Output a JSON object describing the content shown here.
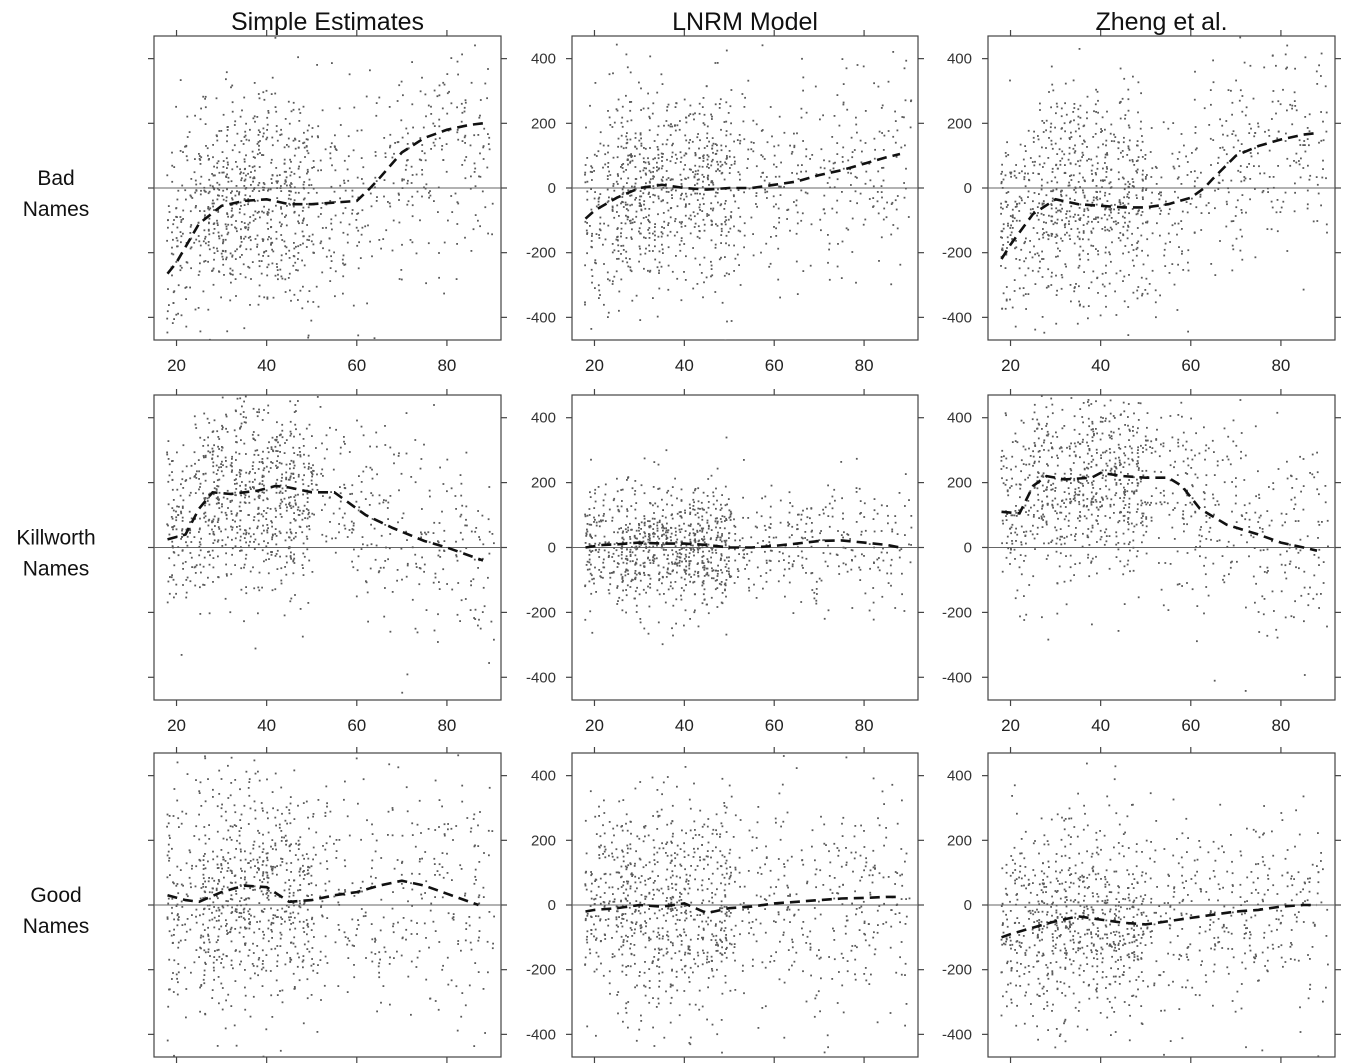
{
  "chart_data": {
    "type": "scatter",
    "layout": "3x3 grid of panels",
    "column_titles": [
      "Simple Estimates",
      "LNRM Model",
      "Zheng et al."
    ],
    "row_labels": [
      [
        "Bad",
        "Names"
      ],
      [
        "Killworth",
        "Names"
      ],
      [
        "Good",
        "Names"
      ]
    ],
    "x_ticks": [
      20,
      40,
      60,
      80
    ],
    "x_range": [
      15,
      92
    ],
    "y_ticks": [
      400,
      200,
      0,
      -200,
      -400
    ],
    "y_range": [
      -470,
      470
    ],
    "reference_line_y": 0,
    "panels": [
      {
        "row": 0,
        "col": 0,
        "trend": {
          "x": [
            18,
            20,
            25,
            30,
            35,
            40,
            45,
            50,
            55,
            60,
            63,
            65,
            70,
            75,
            80,
            85,
            88
          ],
          "y": [
            -265,
            -230,
            -110,
            -55,
            -40,
            -35,
            -50,
            -50,
            -45,
            -40,
            0,
            30,
            110,
            155,
            180,
            195,
            200
          ]
        },
        "scatter": {
          "center": [
            -20,
            -20,
            0,
            40
          ],
          "spread": 170
        }
      },
      {
        "row": 0,
        "col": 1,
        "trend": {
          "x": [
            18,
            20,
            25,
            30,
            35,
            40,
            45,
            50,
            55,
            60,
            65,
            70,
            75,
            80,
            85,
            88
          ],
          "y": [
            -95,
            -70,
            -30,
            0,
            10,
            0,
            -5,
            0,
            0,
            10,
            20,
            40,
            55,
            75,
            95,
            105
          ]
        },
        "scatter": {
          "center": [
            0,
            10,
            20,
            40
          ],
          "spread": 160
        }
      },
      {
        "row": 0,
        "col": 2,
        "trend": {
          "x": [
            18,
            20,
            25,
            30,
            35,
            40,
            45,
            50,
            55,
            60,
            63,
            65,
            70,
            75,
            80,
            85,
            88
          ],
          "y": [
            -220,
            -175,
            -80,
            -35,
            -50,
            -55,
            -60,
            -60,
            -50,
            -30,
            0,
            30,
            100,
            130,
            150,
            165,
            170
          ]
        },
        "scatter": {
          "center": [
            -20,
            -20,
            0,
            60
          ],
          "spread": 170
        }
      },
      {
        "row": 1,
        "col": 0,
        "trend": {
          "x": [
            18,
            22,
            25,
            28,
            32,
            38,
            42,
            45,
            50,
            55,
            58,
            62,
            68,
            75,
            80,
            85,
            88
          ],
          "y": [
            25,
            40,
            120,
            170,
            165,
            175,
            190,
            185,
            170,
            170,
            140,
            100,
            60,
            20,
            0,
            -25,
            -40
          ]
        },
        "scatter": {
          "center": [
            150,
            170,
            110,
            20
          ],
          "spread": 150
        }
      },
      {
        "row": 1,
        "col": 1,
        "trend": {
          "x": [
            18,
            22,
            25,
            30,
            35,
            40,
            45,
            50,
            55,
            60,
            65,
            70,
            75,
            80,
            85,
            88
          ],
          "y": [
            0,
            8,
            10,
            15,
            12,
            12,
            8,
            0,
            0,
            5,
            12,
            20,
            22,
            15,
            8,
            0
          ]
        },
        "scatter": {
          "center": [
            10,
            20,
            10,
            20
          ],
          "spread": 95
        }
      },
      {
        "row": 1,
        "col": 2,
        "trend": {
          "x": [
            18,
            22,
            25,
            28,
            32,
            38,
            40,
            45,
            50,
            55,
            58,
            62,
            68,
            75,
            80,
            85,
            88
          ],
          "y": [
            110,
            105,
            190,
            220,
            210,
            215,
            230,
            220,
            215,
            215,
            190,
            120,
            70,
            40,
            15,
            0,
            -10
          ]
        },
        "scatter": {
          "center": [
            180,
            230,
            170,
            30
          ],
          "spread": 150
        }
      },
      {
        "row": 2,
        "col": 0,
        "trend": {
          "x": [
            18,
            22,
            25,
            30,
            35,
            40,
            45,
            50,
            55,
            60,
            65,
            70,
            75,
            80,
            85,
            87
          ],
          "y": [
            30,
            15,
            10,
            40,
            60,
            55,
            10,
            15,
            30,
            40,
            60,
            75,
            60,
            35,
            10,
            0
          ]
        },
        "scatter": {
          "center": [
            50,
            60,
            40,
            30
          ],
          "spread": 190
        }
      },
      {
        "row": 2,
        "col": 1,
        "trend": {
          "x": [
            18,
            20,
            25,
            30,
            35,
            40,
            45,
            50,
            55,
            60,
            65,
            70,
            75,
            80,
            85,
            88
          ],
          "y": [
            -20,
            -15,
            -10,
            0,
            -5,
            5,
            -25,
            -10,
            -5,
            5,
            10,
            15,
            20,
            22,
            25,
            25
          ]
        },
        "scatter": {
          "center": [
            0,
            0,
            -10,
            0
          ],
          "spread": 170
        }
      },
      {
        "row": 2,
        "col": 2,
        "trend": {
          "x": [
            18,
            20,
            25,
            30,
            35,
            40,
            45,
            50,
            55,
            60,
            65,
            70,
            75,
            80,
            85,
            88
          ],
          "y": [
            -100,
            -90,
            -70,
            -50,
            -35,
            -45,
            -55,
            -60,
            -50,
            -40,
            -30,
            -20,
            -15,
            -5,
            0,
            0
          ]
        },
        "scatter": {
          "center": [
            -40,
            -40,
            -40,
            -20
          ],
          "spread": 160
        }
      }
    ]
  }
}
